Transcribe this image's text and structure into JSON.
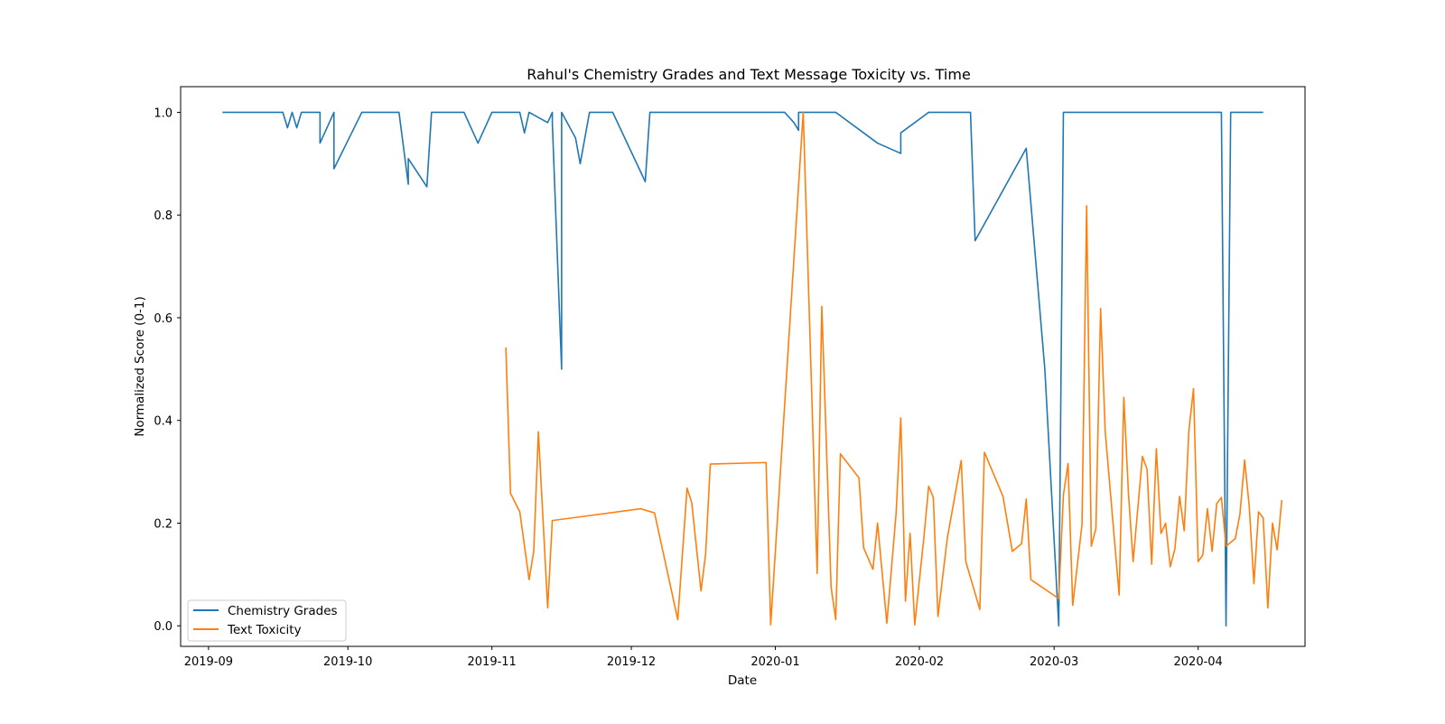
{
  "chart_data": {
    "type": "line",
    "title": "Rahul's Chemistry Grades and Text Message Toxicity vs. Time",
    "xlabel": "Date",
    "ylabel": "Normalized Score (0-1)",
    "xlim": [
      "2019-08-26",
      "2020-04-24"
    ],
    "ylim": [
      -0.04,
      1.05
    ],
    "x_ticks": [
      "2019-09-01",
      "2019-10-01",
      "2019-11-01",
      "2019-12-01",
      "2020-01-01",
      "2020-02-01",
      "2020-03-01",
      "2020-04-01"
    ],
    "x_tick_labels": [
      "2019-09",
      "2019-10",
      "2019-11",
      "2019-12",
      "2020-01",
      "2020-02",
      "2020-03",
      "2020-04"
    ],
    "y_ticks": [
      0.0,
      0.2,
      0.4,
      0.6,
      0.8,
      1.0
    ],
    "y_tick_labels": [
      "0.0",
      "0.2",
      "0.4",
      "0.6",
      "0.8",
      "1.0"
    ],
    "grid": false,
    "legend_position": "lower-left",
    "series": [
      {
        "name": "Chemistry Grades",
        "color": "#1f77b4",
        "points": [
          [
            "2019-09-04",
            1.0
          ],
          [
            "2019-09-17",
            1.0
          ],
          [
            "2019-09-18",
            0.97
          ],
          [
            "2019-09-19",
            1.0
          ],
          [
            "2019-09-20",
            0.97
          ],
          [
            "2019-09-21",
            1.0
          ],
          [
            "2019-09-25",
            1.0
          ],
          [
            "2019-09-25",
            0.94
          ],
          [
            "2019-09-28",
            1.0
          ],
          [
            "2019-09-28",
            0.89
          ],
          [
            "2019-10-04",
            1.0
          ],
          [
            "2019-10-12",
            1.0
          ],
          [
            "2019-10-14",
            0.86
          ],
          [
            "2019-10-14",
            0.91
          ],
          [
            "2019-10-18",
            0.855
          ],
          [
            "2019-10-19",
            1.0
          ],
          [
            "2019-10-26",
            1.0
          ],
          [
            "2019-10-29",
            0.94
          ],
          [
            "2019-11-01",
            1.0
          ],
          [
            "2019-11-07",
            1.0
          ],
          [
            "2019-11-08",
            0.96
          ],
          [
            "2019-11-09",
            1.0
          ],
          [
            "2019-11-13",
            0.98
          ],
          [
            "2019-11-14",
            1.0
          ],
          [
            "2019-11-14",
            0.98
          ],
          [
            "2019-11-16",
            0.5
          ],
          [
            "2019-11-16",
            1.0
          ],
          [
            "2019-11-19",
            0.95
          ],
          [
            "2019-11-20",
            0.9
          ],
          [
            "2019-11-22",
            1.0
          ],
          [
            "2019-11-27",
            1.0
          ],
          [
            "2019-12-04",
            0.865
          ],
          [
            "2019-12-05",
            1.0
          ],
          [
            "2020-01-03",
            1.0
          ],
          [
            "2020-01-05",
            0.98
          ],
          [
            "2020-01-06",
            0.965
          ],
          [
            "2020-01-06",
            1.0
          ],
          [
            "2020-01-14",
            1.0
          ],
          [
            "2020-01-23",
            0.94
          ],
          [
            "2020-01-28",
            0.92
          ],
          [
            "2020-01-28",
            0.96
          ],
          [
            "2020-02-03",
            1.0
          ],
          [
            "2020-02-12",
            1.0
          ],
          [
            "2020-02-13",
            0.75
          ],
          [
            "2020-02-24",
            0.93
          ],
          [
            "2020-02-28",
            0.5
          ],
          [
            "2020-03-02",
            0.0
          ],
          [
            "2020-03-03",
            1.0
          ],
          [
            "2020-04-06",
            1.0
          ],
          [
            "2020-04-07",
            0.0
          ],
          [
            "2020-04-08",
            1.0
          ],
          [
            "2020-04-15",
            1.0
          ]
        ]
      },
      {
        "name": "Text Toxicity",
        "color": "#ff7f0e",
        "points": [
          [
            "2019-11-04",
            0.542
          ],
          [
            "2019-11-05",
            0.258
          ],
          [
            "2019-11-07",
            0.222
          ],
          [
            "2019-11-09",
            0.09
          ],
          [
            "2019-11-10",
            0.145
          ],
          [
            "2019-11-11",
            0.378
          ],
          [
            "2019-11-13",
            0.035
          ],
          [
            "2019-11-14",
            0.205
          ],
          [
            "2019-12-03",
            0.228
          ],
          [
            "2019-12-06",
            0.22
          ],
          [
            "2019-12-11",
            0.012
          ],
          [
            "2019-12-13",
            0.268
          ],
          [
            "2019-12-14",
            0.24
          ],
          [
            "2019-12-16",
            0.068
          ],
          [
            "2019-12-17",
            0.14
          ],
          [
            "2019-12-18",
            0.315
          ],
          [
            "2019-12-30",
            0.318
          ],
          [
            "2019-12-31",
            0.002
          ],
          [
            "2020-01-07",
            1.0
          ],
          [
            "2020-01-10",
            0.102
          ],
          [
            "2020-01-11",
            0.622
          ],
          [
            "2020-01-13",
            0.075
          ],
          [
            "2020-01-14",
            0.012
          ],
          [
            "2020-01-15",
            0.335
          ],
          [
            "2020-01-19",
            0.288
          ],
          [
            "2020-01-20",
            0.152
          ],
          [
            "2020-01-22",
            0.11
          ],
          [
            "2020-01-23",
            0.2
          ],
          [
            "2020-01-25",
            0.005
          ],
          [
            "2020-01-27",
            0.22
          ],
          [
            "2020-01-28",
            0.405
          ],
          [
            "2020-01-29",
            0.048
          ],
          [
            "2020-01-30",
            0.18
          ],
          [
            "2020-01-31",
            0.002
          ],
          [
            "2020-02-02",
            0.175
          ],
          [
            "2020-02-03",
            0.272
          ],
          [
            "2020-02-04",
            0.25
          ],
          [
            "2020-02-05",
            0.018
          ],
          [
            "2020-02-07",
            0.17
          ],
          [
            "2020-02-10",
            0.322
          ],
          [
            "2020-02-11",
            0.125
          ],
          [
            "2020-02-14",
            0.032
          ],
          [
            "2020-02-15",
            0.338
          ],
          [
            "2020-02-19",
            0.252
          ],
          [
            "2020-02-21",
            0.145
          ],
          [
            "2020-02-23",
            0.16
          ],
          [
            "2020-02-24",
            0.247
          ],
          [
            "2020-02-25",
            0.09
          ],
          [
            "2020-03-02",
            0.053
          ],
          [
            "2020-03-03",
            0.255
          ],
          [
            "2020-03-04",
            0.316
          ],
          [
            "2020-03-05",
            0.04
          ],
          [
            "2020-03-07",
            0.197
          ],
          [
            "2020-03-08",
            0.818
          ],
          [
            "2020-03-09",
            0.155
          ],
          [
            "2020-03-10",
            0.19
          ],
          [
            "2020-03-11",
            0.618
          ],
          [
            "2020-03-12",
            0.378
          ],
          [
            "2020-03-15",
            0.06
          ],
          [
            "2020-03-16",
            0.445
          ],
          [
            "2020-03-17",
            0.258
          ],
          [
            "2020-03-18",
            0.125
          ],
          [
            "2020-03-20",
            0.33
          ],
          [
            "2020-03-21",
            0.305
          ],
          [
            "2020-03-22",
            0.12
          ],
          [
            "2020-03-23",
            0.345
          ],
          [
            "2020-03-24",
            0.18
          ],
          [
            "2020-03-25",
            0.2
          ],
          [
            "2020-03-26",
            0.115
          ],
          [
            "2020-03-27",
            0.15
          ],
          [
            "2020-03-28",
            0.252
          ],
          [
            "2020-03-29",
            0.185
          ],
          [
            "2020-03-30",
            0.38
          ],
          [
            "2020-03-31",
            0.462
          ],
          [
            "2020-04-01",
            0.125
          ],
          [
            "2020-04-02",
            0.138
          ],
          [
            "2020-04-03",
            0.228
          ],
          [
            "2020-04-04",
            0.145
          ],
          [
            "2020-04-05",
            0.238
          ],
          [
            "2020-04-06",
            0.25
          ],
          [
            "2020-04-07",
            0.155
          ],
          [
            "2020-04-09",
            0.17
          ],
          [
            "2020-04-10",
            0.218
          ],
          [
            "2020-04-11",
            0.323
          ],
          [
            "2020-04-12",
            0.232
          ],
          [
            "2020-04-13",
            0.082
          ],
          [
            "2020-04-14",
            0.222
          ],
          [
            "2020-04-15",
            0.21
          ],
          [
            "2020-04-16",
            0.035
          ],
          [
            "2020-04-17",
            0.2
          ],
          [
            "2020-04-18",
            0.148
          ],
          [
            "2020-04-19",
            0.245
          ]
        ]
      }
    ]
  }
}
